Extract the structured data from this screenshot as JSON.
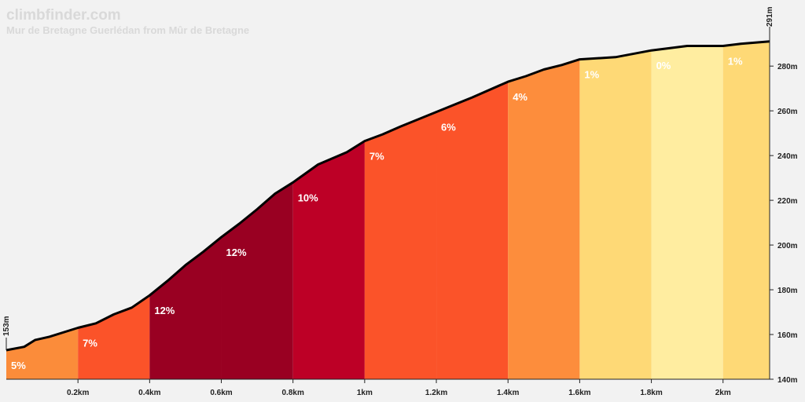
{
  "brand": {
    "site": "climbfinder.com",
    "climb_name": "Mur de Bretagne Guerlédan from Mûr de Bretagne"
  },
  "chart_data": {
    "type": "area",
    "title": "Mur de Bretagne Guerlédan from Mûr de Bretagne",
    "xlabel": "",
    "ylabel": "",
    "xlim_km": [
      0,
      2.13
    ],
    "ylim_m": [
      140,
      292
    ],
    "start_elevation_label": "153m",
    "end_elevation_label": "291m",
    "x_ticks": [
      {
        "value": 0.2,
        "label": "0.2km"
      },
      {
        "value": 0.4,
        "label": "0.4km"
      },
      {
        "value": 0.6,
        "label": "0.6km"
      },
      {
        "value": 0.8,
        "label": "0.8km"
      },
      {
        "value": 1.0,
        "label": "1km"
      },
      {
        "value": 1.2,
        "label": "1.2km"
      },
      {
        "value": 1.4,
        "label": "1.4km"
      },
      {
        "value": 1.6,
        "label": "1.6km"
      },
      {
        "value": 1.8,
        "label": "1.8km"
      },
      {
        "value": 2.0,
        "label": "2km"
      }
    ],
    "y_ticks": [
      {
        "value": 140,
        "label": "140m"
      },
      {
        "value": 160,
        "label": "160m"
      },
      {
        "value": 180,
        "label": "180m"
      },
      {
        "value": 200,
        "label": "200m"
      },
      {
        "value": 220,
        "label": "220m"
      },
      {
        "value": 240,
        "label": "240m"
      },
      {
        "value": 260,
        "label": "260m"
      },
      {
        "value": 280,
        "label": "280m"
      }
    ],
    "profile": [
      {
        "km": 0.0,
        "m": 153.0
      },
      {
        "km": 0.05,
        "m": 154.5
      },
      {
        "km": 0.08,
        "m": 157.5
      },
      {
        "km": 0.12,
        "m": 159.0
      },
      {
        "km": 0.2,
        "m": 163.0
      },
      {
        "km": 0.25,
        "m": 165.0
      },
      {
        "km": 0.3,
        "m": 169.0
      },
      {
        "km": 0.35,
        "m": 172.0
      },
      {
        "km": 0.4,
        "m": 177.5
      },
      {
        "km": 0.45,
        "m": 184.0
      },
      {
        "km": 0.5,
        "m": 191.0
      },
      {
        "km": 0.55,
        "m": 197.0
      },
      {
        "km": 0.6,
        "m": 203.5
      },
      {
        "km": 0.65,
        "m": 209.5
      },
      {
        "km": 0.7,
        "m": 216.0
      },
      {
        "km": 0.75,
        "m": 223.0
      },
      {
        "km": 0.8,
        "m": 228.0
      },
      {
        "km": 0.87,
        "m": 236.0
      },
      {
        "km": 0.95,
        "m": 241.5
      },
      {
        "km": 1.0,
        "m": 246.5
      },
      {
        "km": 1.05,
        "m": 249.5
      },
      {
        "km": 1.1,
        "m": 253.0
      },
      {
        "km": 1.2,
        "m": 259.5
      },
      {
        "km": 1.3,
        "m": 266.0
      },
      {
        "km": 1.4,
        "m": 273.0
      },
      {
        "km": 1.45,
        "m": 275.5
      },
      {
        "km": 1.5,
        "m": 278.5
      },
      {
        "km": 1.55,
        "m": 280.5
      },
      {
        "km": 1.6,
        "m": 283.0
      },
      {
        "km": 1.7,
        "m": 284.0
      },
      {
        "km": 1.8,
        "m": 287.0
      },
      {
        "km": 1.9,
        "m": 289.0
      },
      {
        "km": 2.0,
        "m": 289.0
      },
      {
        "km": 2.05,
        "m": 290.0
      },
      {
        "km": 2.13,
        "m": 291.0
      }
    ],
    "segments": [
      {
        "start_km": 0.0,
        "end_km": 0.2,
        "grade": "5%",
        "color": "#fb8c3a"
      },
      {
        "start_km": 0.2,
        "end_km": 0.4,
        "grade": "7%",
        "color": "#fb5329"
      },
      {
        "start_km": 0.4,
        "end_km": 0.6,
        "grade": "12%",
        "color": "#990022"
      },
      {
        "start_km": 0.6,
        "end_km": 0.8,
        "grade": "12%",
        "color": "#990022"
      },
      {
        "start_km": 0.8,
        "end_km": 1.0,
        "grade": "10%",
        "color": "#bd0026"
      },
      {
        "start_km": 1.0,
        "end_km": 1.2,
        "grade": "7%",
        "color": "#fb5329"
      },
      {
        "start_km": 1.2,
        "end_km": 1.4,
        "grade": "6%",
        "color": "#fb5329"
      },
      {
        "start_km": 1.4,
        "end_km": 1.6,
        "grade": "4%",
        "color": "#fd8d3c"
      },
      {
        "start_km": 1.6,
        "end_km": 1.8,
        "grade": "1%",
        "color": "#fed976"
      },
      {
        "start_km": 1.8,
        "end_km": 2.0,
        "grade": "0%",
        "color": "#ffeda0"
      },
      {
        "start_km": 2.0,
        "end_km": 2.13,
        "grade": "1%",
        "color": "#fed976"
      }
    ],
    "colors": {
      "background": "#f2f2f2",
      "profile_line": "#000000",
      "axis": "#222222",
      "watermark": "#d9d9d9"
    },
    "grid": false,
    "legend": "none"
  }
}
